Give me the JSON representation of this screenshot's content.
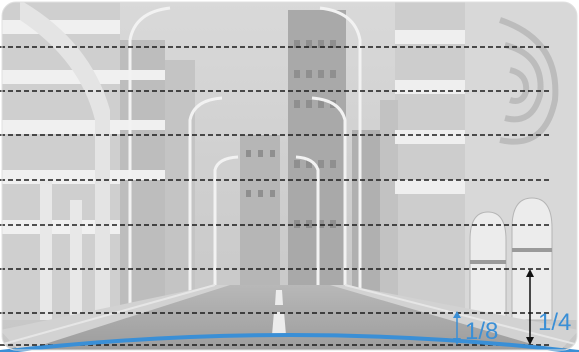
{
  "labels": {
    "eighth": "1/8",
    "quarter": "1/4"
  },
  "colors": {
    "accent_blue": "#3a8fd6",
    "dash_line": "#1a1a1a",
    "arrow_black": "#111111"
  }
}
